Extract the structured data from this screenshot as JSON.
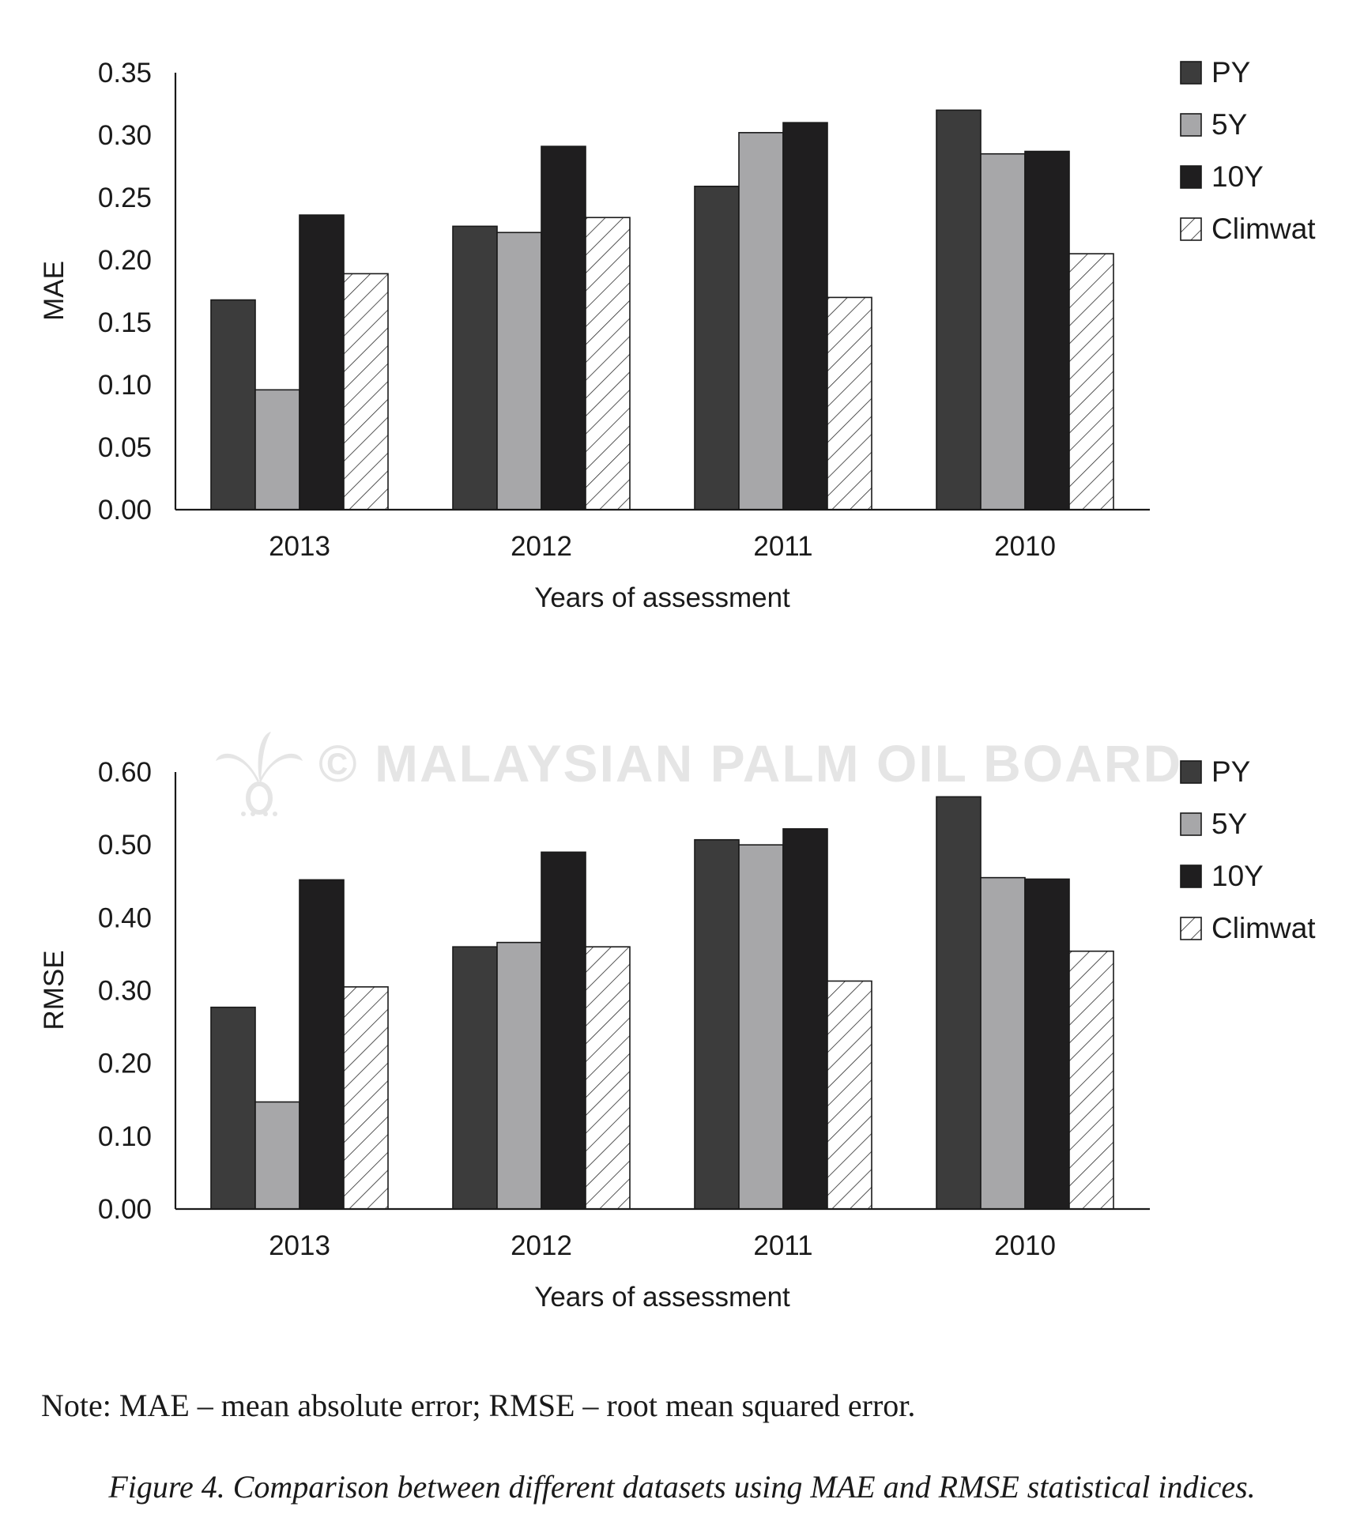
{
  "chart_data": [
    {
      "type": "bar",
      "ylabel": "MAE",
      "xlabel": "Years of assessment",
      "categories": [
        "2013",
        "2012",
        "2011",
        "2010"
      ],
      "yticks": [
        "0.00",
        "0.05",
        "0.10",
        "0.15",
        "0.20",
        "0.25",
        "0.30",
        "0.35"
      ],
      "ylim": [
        0,
        0.35
      ],
      "grid": false,
      "legend_position": "top-right",
      "series": [
        {
          "name": "PY",
          "values": [
            0.168,
            0.227,
            0.259,
            0.32
          ],
          "color": "#3c3c3c",
          "pattern": "solid"
        },
        {
          "name": "5Y",
          "values": [
            0.096,
            0.222,
            0.302,
            0.285
          ],
          "color": "#a7a7a9",
          "pattern": "solid"
        },
        {
          "name": "10Y",
          "values": [
            0.236,
            0.291,
            0.31,
            0.287
          ],
          "color": "#1f1e1f",
          "pattern": "solid"
        },
        {
          "name": "Climwat",
          "values": [
            0.189,
            0.234,
            0.17,
            0.205
          ],
          "color": "#ffffff",
          "pattern": "hatch"
        }
      ]
    },
    {
      "type": "bar",
      "ylabel": "RMSE",
      "xlabel": "Years of assessment",
      "categories": [
        "2013",
        "2012",
        "2011",
        "2010"
      ],
      "yticks": [
        "0.00",
        "0.10",
        "0.20",
        "0.30",
        "0.40",
        "0.50",
        "0.60"
      ],
      "ylim": [
        0,
        0.6
      ],
      "grid": false,
      "legend_position": "top-right",
      "series": [
        {
          "name": "PY",
          "values": [
            0.277,
            0.36,
            0.507,
            0.566
          ],
          "color": "#3c3c3c",
          "pattern": "solid"
        },
        {
          "name": "5Y",
          "values": [
            0.147,
            0.366,
            0.5,
            0.455
          ],
          "color": "#a7a7a9",
          "pattern": "solid"
        },
        {
          "name": "10Y",
          "values": [
            0.452,
            0.49,
            0.522,
            0.453
          ],
          "color": "#1f1e1f",
          "pattern": "solid"
        },
        {
          "name": "Climwat",
          "values": [
            0.305,
            0.36,
            0.313,
            0.354
          ],
          "color": "#ffffff",
          "pattern": "hatch"
        }
      ]
    }
  ],
  "watermark": "© MALAYSIAN PALM OIL BOARD",
  "note": "Note: MAE – mean absolute error; RMSE – root mean squared error.",
  "caption": "Figure 4. Comparison between different datasets using MAE and RMSE statistical indices."
}
